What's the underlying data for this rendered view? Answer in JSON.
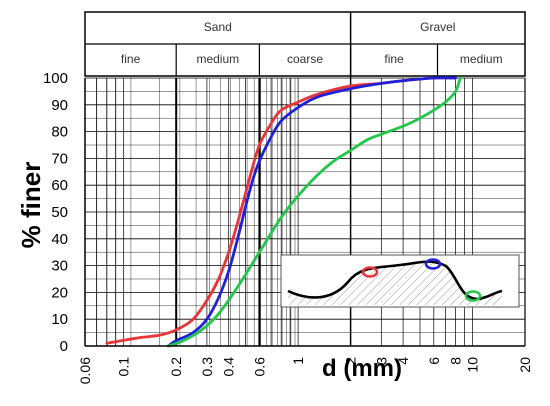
{
  "chart_data": {
    "type": "line",
    "title": "",
    "xlabel": "d  (mm)",
    "ylabel": "% finer",
    "x_scale": "log",
    "xlim": [
      0.06,
      20
    ],
    "ylim": [
      0,
      100
    ],
    "x_ticks": [
      "0.06",
      "0.1",
      "0.2",
      "0.3",
      "0.4",
      "0.6",
      "1",
      "2",
      "3",
      "4",
      "6",
      "8",
      "10",
      "20"
    ],
    "y_ticks": [
      "0",
      "10",
      "20",
      "30",
      "40",
      "50",
      "60",
      "70",
      "80",
      "90",
      "100"
    ],
    "grid": true,
    "soil_classes": [
      {
        "label": "Sand",
        "range": [
          0.06,
          2
        ]
      },
      {
        "label": "Gravel",
        "range": [
          2,
          20
        ]
      }
    ],
    "sub_classes": [
      {
        "label": "fine",
        "range": [
          0.06,
          0.2
        ]
      },
      {
        "label": "medium",
        "range": [
          0.2,
          0.6
        ]
      },
      {
        "label": "coarse",
        "range": [
          0.6,
          2
        ]
      },
      {
        "label": "fine",
        "range": [
          2,
          6.3
        ]
      },
      {
        "label": "medium",
        "range": [
          6.3,
          20
        ]
      }
    ],
    "series": [
      {
        "color": "#e8353a",
        "x": [
          0.08,
          0.12,
          0.16,
          0.2,
          0.25,
          0.3,
          0.35,
          0.4,
          0.45,
          0.5,
          0.55,
          0.6,
          0.7,
          0.8,
          1.0,
          1.3,
          2.0,
          3.0,
          4.0,
          6.0,
          8.0
        ],
        "y": [
          1,
          3,
          4,
          6,
          10,
          17,
          25,
          35,
          46,
          57,
          67,
          75,
          83,
          88,
          91,
          94,
          97,
          98,
          99,
          100,
          100
        ]
      },
      {
        "color": "#2020d8",
        "x": [
          0.18,
          0.2,
          0.25,
          0.3,
          0.35,
          0.4,
          0.45,
          0.5,
          0.55,
          0.6,
          0.7,
          0.8,
          1.0,
          1.3,
          2.0,
          3.0,
          4.0,
          6.0,
          8.0
        ],
        "y": [
          0,
          2,
          5,
          10,
          18,
          28,
          40,
          52,
          62,
          69,
          78,
          84,
          89,
          93,
          96,
          98,
          99,
          100,
          100
        ]
      },
      {
        "color": "#22c74a",
        "x": [
          0.18,
          0.22,
          0.28,
          0.35,
          0.45,
          0.6,
          0.8,
          1.0,
          1.3,
          1.6,
          2.0,
          2.5,
          3.0,
          4.0,
          5.0,
          6.0,
          7.0,
          8.0,
          8.5
        ],
        "y": [
          0,
          2,
          6,
          12,
          22,
          35,
          48,
          56,
          64,
          69,
          73,
          77,
          79,
          82,
          85,
          88,
          91,
          95,
          100
        ]
      }
    ]
  },
  "inset": {
    "markers": [
      {
        "color": "#e8353a"
      },
      {
        "color": "#2020d8"
      },
      {
        "color": "#22c74a"
      }
    ]
  }
}
